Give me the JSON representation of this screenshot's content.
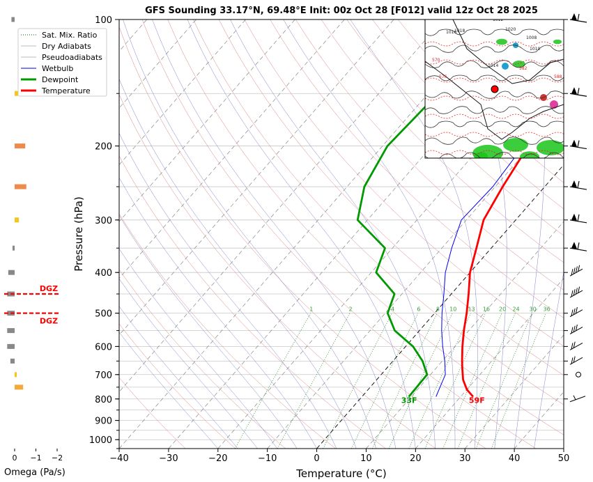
{
  "chart_data": {
    "type": "line",
    "title": "GFS Sounding 33.17°N, 69.48°E Init: 00z Oct 28 [F012] valid 12z Oct 28 2025",
    "xlabel": "Temperature (°C)",
    "ylabel": "Pressure (hPa)",
    "x_ticks": [
      -40,
      -30,
      -20,
      -10,
      0,
      10,
      20,
      30,
      40,
      50
    ],
    "y_ticks": [
      100,
      200,
      300,
      400,
      500,
      600,
      700,
      800,
      900,
      1000
    ],
    "xlim": [
      -40,
      50
    ],
    "ylim": [
      1050,
      100
    ],
    "y_scale": "log",
    "grid": true,
    "legend": {
      "placement": "top-left",
      "entries": [
        "Sat. Mix. Ratio",
        "Dry Adiabats",
        "Pseudoadiabats",
        "Wetbulb",
        "Dewpoint",
        "Temperature"
      ]
    },
    "series": [
      {
        "name": "Temperature",
        "color": "#ff0000",
        "points": [
          {
            "p": 790,
            "t": 22.5
          },
          {
            "p": 760,
            "t": 20
          },
          {
            "p": 720,
            "t": 17.5
          },
          {
            "p": 680,
            "t": 15.5
          },
          {
            "p": 650,
            "t": 14
          },
          {
            "p": 600,
            "t": 11.5
          },
          {
            "p": 550,
            "t": 9
          },
          {
            "p": 500,
            "t": 6.5
          },
          {
            "p": 450,
            "t": 3.5
          },
          {
            "p": 400,
            "t": 0
          },
          {
            "p": 350,
            "t": -3
          },
          {
            "p": 300,
            "t": -6.5
          },
          {
            "p": 250,
            "t": -8.5
          },
          {
            "p": 200,
            "t": -10.5
          },
          {
            "p": 150,
            "t": -14
          },
          {
            "p": 130,
            "t": -14.3
          },
          {
            "p": 100,
            "t": -14.6
          }
        ]
      },
      {
        "name": "Dewpoint",
        "color": "#009900",
        "points": [
          {
            "p": 790,
            "t": 9.5
          },
          {
            "p": 700,
            "t": 9.3
          },
          {
            "p": 650,
            "t": 6
          },
          {
            "p": 600,
            "t": 1.5
          },
          {
            "p": 550,
            "t": -5
          },
          {
            "p": 500,
            "t": -9.5
          },
          {
            "p": 450,
            "t": -11.5
          },
          {
            "p": 400,
            "t": -19
          },
          {
            "p": 350,
            "t": -21.5
          },
          {
            "p": 300,
            "t": -32
          },
          {
            "p": 250,
            "t": -36.5
          },
          {
            "p": 200,
            "t": -39
          },
          {
            "p": 150,
            "t": -38
          },
          {
            "p": 100,
            "t": -33
          }
        ]
      },
      {
        "name": "Wetbulb",
        "color": "#0000ee",
        "points": [
          {
            "p": 790,
            "t": 15
          },
          {
            "p": 700,
            "t": 13
          },
          {
            "p": 650,
            "t": 10.5
          },
          {
            "p": 600,
            "t": 7.5
          },
          {
            "p": 550,
            "t": 4.5
          },
          {
            "p": 500,
            "t": 1.5
          },
          {
            "p": 450,
            "t": -1.5
          },
          {
            "p": 400,
            "t": -5
          },
          {
            "p": 350,
            "t": -8
          },
          {
            "p": 300,
            "t": -11
          },
          {
            "p": 250,
            "t": -10.5
          },
          {
            "p": 200,
            "t": -11.5
          },
          {
            "p": 150,
            "t": -14
          }
        ]
      }
    ],
    "surface_labels": {
      "temperature": "59F",
      "dewpoint": "33F"
    },
    "mixing_ratio_labels": [
      "1",
      "2",
      "4",
      "6",
      "8",
      "10",
      "13",
      "16",
      "20",
      "24",
      "30",
      "36"
    ],
    "wind_barb_levels_hpa": [
      100,
      150,
      200,
      250,
      300,
      350,
      400,
      450,
      500,
      550,
      600,
      650,
      700,
      800
    ],
    "omega_panel": {
      "xlabel": "Omega (Pa/s)",
      "x_ticks": [
        "0",
        "−1",
        "−2"
      ],
      "dgz_label": "DGZ",
      "dgz_levels_hpa": [
        450,
        500
      ],
      "bars": [
        {
          "p": 100,
          "omega": 0.15,
          "color": "#888888"
        },
        {
          "p": 150,
          "omega": -0.15,
          "color": "#f5c518"
        },
        {
          "p": 200,
          "omega": -0.5,
          "color": "#f08a4b"
        },
        {
          "p": 250,
          "omega": -0.55,
          "color": "#f08a4b"
        },
        {
          "p": 300,
          "omega": -0.2,
          "color": "#f5c518"
        },
        {
          "p": 350,
          "omega": 0.1,
          "color": "#888888"
        },
        {
          "p": 400,
          "omega": 0.3,
          "color": "#888888"
        },
        {
          "p": 450,
          "omega": 0.35,
          "color": "#888888"
        },
        {
          "p": 500,
          "omega": 0.35,
          "color": "#888888"
        },
        {
          "p": 550,
          "omega": 0.35,
          "color": "#888888"
        },
        {
          "p": 600,
          "omega": 0.35,
          "color": "#888888"
        },
        {
          "p": 650,
          "omega": 0.2,
          "color": "#888888"
        },
        {
          "p": 700,
          "omega": -0.1,
          "color": "#f5c518"
        },
        {
          "p": 750,
          "omega": -0.4,
          "color": "#f5a93b"
        }
      ]
    },
    "inset_map": {
      "isobar_labels": [
        "1016",
        "1014",
        "1010",
        "1018",
        "1020",
        "1012",
        "1008",
        "570",
        "576",
        "582",
        "588"
      ]
    }
  }
}
